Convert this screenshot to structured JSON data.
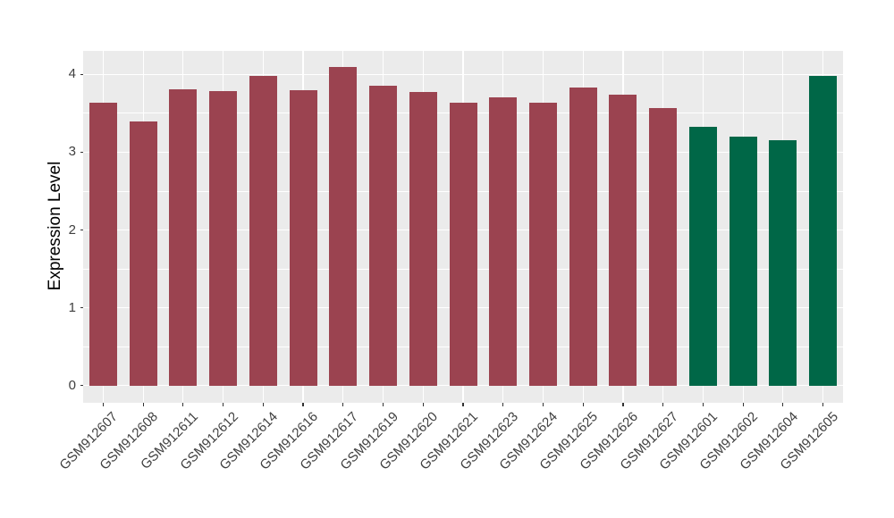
{
  "chart_data": {
    "type": "bar",
    "title": "",
    "xlabel": "",
    "ylabel": "Expression Level",
    "categories": [
      "GSM912607",
      "GSM912608",
      "GSM912611",
      "GSM912612",
      "GSM912614",
      "GSM912616",
      "GSM912617",
      "GSM912619",
      "GSM912620",
      "GSM912621",
      "GSM912623",
      "GSM912624",
      "GSM912625",
      "GSM912626",
      "GSM912627",
      "GSM912601",
      "GSM912602",
      "GSM912604",
      "GSM912605"
    ],
    "values": [
      3.64,
      3.39,
      3.81,
      3.78,
      3.98,
      3.8,
      4.1,
      3.85,
      3.77,
      3.64,
      3.7,
      3.64,
      3.83,
      3.74,
      3.57,
      3.33,
      3.2,
      3.15,
      3.98
    ],
    "bar_colors": [
      "#9B4350",
      "#9B4350",
      "#9B4350",
      "#9B4350",
      "#9B4350",
      "#9B4350",
      "#9B4350",
      "#9B4350",
      "#9B4350",
      "#9B4350",
      "#9B4350",
      "#9B4350",
      "#9B4350",
      "#9B4350",
      "#9B4350",
      "#006747",
      "#006747",
      "#006747",
      "#006747"
    ],
    "group_colors": {
      "red_group": "#9B4350",
      "green_group": "#006747"
    },
    "ylim": [
      0,
      4.3
    ],
    "yticks": [
      0,
      1,
      2,
      3,
      4
    ],
    "minor_gridlines": [
      0.5,
      1.5,
      2.5,
      3.5
    ],
    "grid": true,
    "legend_position": "none",
    "panel_background": "#EBEBEB",
    "gridline_color": "#FFFFFF",
    "axis_text_color": "#404040"
  }
}
